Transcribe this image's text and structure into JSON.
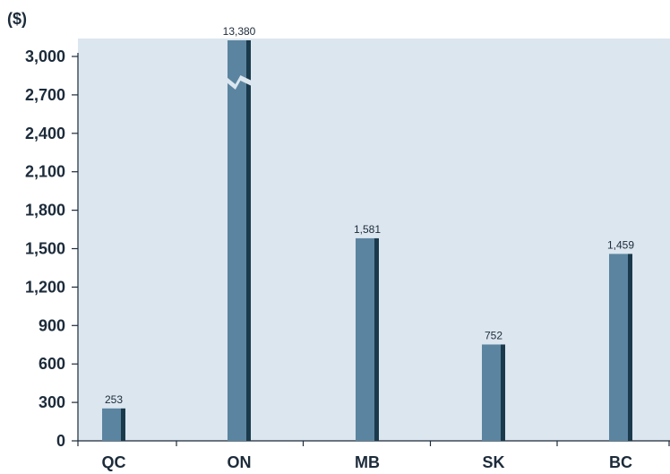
{
  "chart_data": {
    "type": "bar",
    "unit_label": "($)",
    "categories": [
      "QC",
      "ON",
      "MB",
      "SK",
      "BC"
    ],
    "values": [
      253,
      13380,
      1581,
      752,
      1459
    ],
    "data_labels": [
      "253",
      "13,380",
      "1,581",
      "752",
      "1,459"
    ],
    "y_ticks": [
      0,
      300,
      600,
      900,
      1200,
      1500,
      1800,
      2100,
      2400,
      2700,
      3000
    ],
    "y_tick_labels": [
      "0",
      "300",
      "600",
      "900",
      "1,200",
      "1,500",
      "1,800",
      "2,100",
      "2,400",
      "2,700",
      "3,000"
    ],
    "ylim": [
      0,
      3000
    ],
    "axis_break": "ON",
    "grid": false,
    "colors": {
      "plot_background": "#dbe6ef",
      "bar_face": "#5b84a0",
      "bar_shadow": "#1a3a4c",
      "axis": "#1c2b3a"
    }
  }
}
